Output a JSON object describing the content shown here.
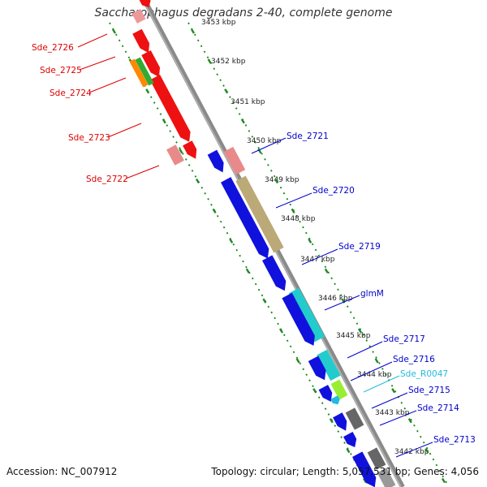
{
  "title": "Saccharophagus degradans 2-40, complete genome",
  "accession": "Accession: NC_007912",
  "summary": "Topology: circular; Length: 5,057,531 bp; Genes: 4,056",
  "colors": {
    "backbone": "#808080",
    "dots": "#118811",
    "ticks": "#228822",
    "label_left": "#dd0000",
    "label_right": "#0000cc",
    "rna_label": "#22bbdd"
  },
  "scale": {
    "unit": "kbp",
    "ticks": [
      {
        "kbp": 3453,
        "label": "3453 kbp"
      },
      {
        "kbp": 3452,
        "label": "3452 kbp"
      },
      {
        "kbp": 3451,
        "label": "3451 kbp"
      },
      {
        "kbp": 3450,
        "label": "3450 kbp"
      },
      {
        "kbp": 3449,
        "label": "3449 kbp"
      },
      {
        "kbp": 3448,
        "label": "3448 kbp"
      },
      {
        "kbp": 3447,
        "label": "3447 kbp"
      },
      {
        "kbp": 3446,
        "label": "3446 kbp"
      },
      {
        "kbp": 3445,
        "label": "3445 kbp"
      },
      {
        "kbp": 3444,
        "label": "3444 kbp"
      },
      {
        "kbp": 3443,
        "label": "3443 kbp"
      },
      {
        "kbp": 3442,
        "label": "3442 kbp"
      }
    ]
  },
  "left_labels": [
    "Sde_2726",
    "Sde_2725",
    "Sde_2724",
    "Sde_2723",
    "Sde_2722"
  ],
  "right_labels": [
    "Sde_2721",
    "Sde_2720",
    "Sde_2719",
    "glmM",
    "Sde_2717",
    "Sde_2716",
    "Sde_R0047",
    "Sde_2715",
    "Sde_2714",
    "Sde_2713"
  ]
}
